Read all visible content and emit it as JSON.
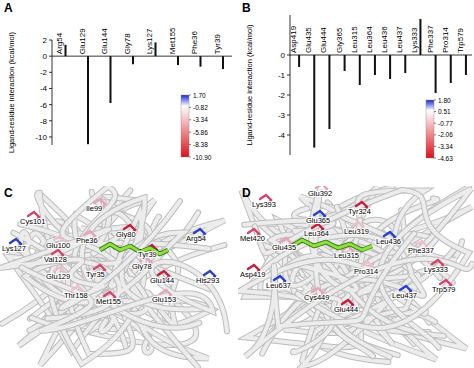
{
  "chart_data": [
    {
      "type": "bar",
      "title": "A",
      "y_label": "Ligand-residue interaction (kcal/mol)",
      "categories": [
        "Arg54",
        "Glu129",
        "Glu144",
        "Gly78",
        "Lys127",
        "Met155",
        "Phe36",
        "Tyr39"
      ],
      "values": [
        1.4,
        -10.9,
        -5.8,
        -1.0,
        1.7,
        -1.1,
        -1.3,
        -1.6
      ],
      "color": "#111111",
      "ylim": [
        -11,
        2
      ],
      "yticks": [
        2,
        0,
        -2,
        -4,
        -6,
        -8,
        -10
      ],
      "colorbar": {
        "range": [
          -10.9,
          1.7
        ],
        "ticks": [
          {
            "value": 1.7,
            "label": "1.70"
          },
          -0.82,
          -3.34,
          -5.86,
          -8.38,
          {
            "value": -10.9,
            "label": "-10.90"
          }
        ]
      }
    },
    {
      "type": "bar",
      "title": "B",
      "y_label": "Ligand-residue interaction (kcal/mol)",
      "categories": [
        "Asp419",
        "Glu435",
        "Glu444",
        "Gly365",
        "Leu315",
        "Leu364",
        "Leu436",
        "Leu437",
        "Lys333",
        "Phe337",
        "Pro314",
        "Trp579"
      ],
      "values": [
        -0.6,
        -4.63,
        -3.7,
        -0.8,
        -1.5,
        -1.0,
        -1.2,
        -0.9,
        1.8,
        -1.9,
        -1.4,
        -1.0
      ],
      "color": "#111111",
      "ylim": [
        -5,
        2
      ],
      "yticks": [
        0,
        -1,
        -2,
        -3,
        -4
      ],
      "colorbar": {
        "range": [
          -4.63,
          1.8
        ],
        "ticks": [
          {
            "value": 1.8,
            "label": "1.80"
          },
          0.51,
          -0.77,
          -2.06,
          -3.34,
          -4.63
        ]
      }
    }
  ],
  "panels": [
    {
      "title": "C",
      "labels": [
        "Cys101",
        "Ile99",
        "Gly80",
        "Lys127",
        "Glu100",
        "Val128",
        "Phe36",
        "Tyr39",
        "Arg54",
        "Glu129",
        "Tyr35",
        "Gly78",
        "Glu144",
        "His293",
        "Thr158",
        "Met155",
        "Glu153"
      ]
    },
    {
      "title": "D",
      "labels": [
        "Lys393",
        "Glu392",
        "Tyr324",
        "Glu365",
        "Leu319",
        "Met420",
        "Glu435",
        "Leu364",
        "Leu436",
        "Phe337",
        "Lys333",
        "Leu315",
        "Asp419",
        "Leu637",
        "Pro314",
        "Trp579",
        "Cys449",
        "Glu444",
        "Leu437"
      ]
    }
  ]
}
